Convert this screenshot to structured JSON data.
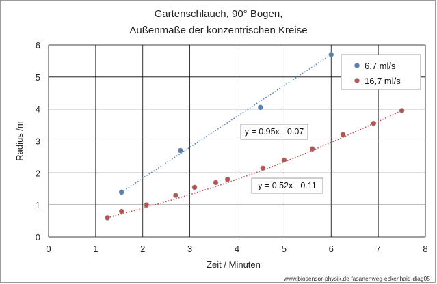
{
  "chart_data": {
    "type": "scatter",
    "title_line1": "Gartenschlauch, 90° Bogen,",
    "title_line2": "Außenmaße der konzentrischen Kreise",
    "xlabel": "Zeit / Minuten",
    "ylabel": "Radius /m",
    "xlim": [
      0,
      8
    ],
    "ylim": [
      0,
      6
    ],
    "xticks": [
      "0",
      "1",
      "2",
      "3",
      "4",
      "5",
      "6",
      "7",
      "8"
    ],
    "yticks": [
      "0",
      "1",
      "2",
      "3",
      "4",
      "5",
      "6"
    ],
    "grid": true,
    "legend_position": "top-right",
    "series": [
      {
        "name": "6,7 ml/s",
        "color": "#4f81bd",
        "points": [
          [
            1.55,
            1.4
          ],
          [
            2.8,
            2.7
          ],
          [
            4.5,
            4.05
          ],
          [
            6.0,
            5.7
          ]
        ],
        "trendline": {
          "label": "y = 0.95x - 0.07",
          "slope": 0.95,
          "intercept": -0.07,
          "x_range": [
            1.55,
            6.0
          ],
          "style": "dotted"
        }
      },
      {
        "name": "16,7 ml/s",
        "color": "#c0504d",
        "points": [
          [
            1.25,
            0.6
          ],
          [
            1.55,
            0.8
          ],
          [
            2.08,
            1.0
          ],
          [
            2.7,
            1.3
          ],
          [
            3.1,
            1.55
          ],
          [
            3.55,
            1.7
          ],
          [
            3.8,
            1.8
          ],
          [
            4.55,
            2.15
          ],
          [
            5.0,
            2.4
          ],
          [
            5.6,
            2.75
          ],
          [
            6.25,
            3.2
          ],
          [
            6.9,
            3.55
          ],
          [
            7.5,
            3.95
          ]
        ],
        "trendline": {
          "label": "y = 0.52x - 0.11",
          "slope": 0.52,
          "intercept": -0.11,
          "x_range": [
            1.25,
            7.5
          ],
          "style": "dotted",
          "curved": true
        }
      }
    ]
  },
  "credit": "www.biosensor-physik.de fasanenweg-eckenhaid-diag05"
}
